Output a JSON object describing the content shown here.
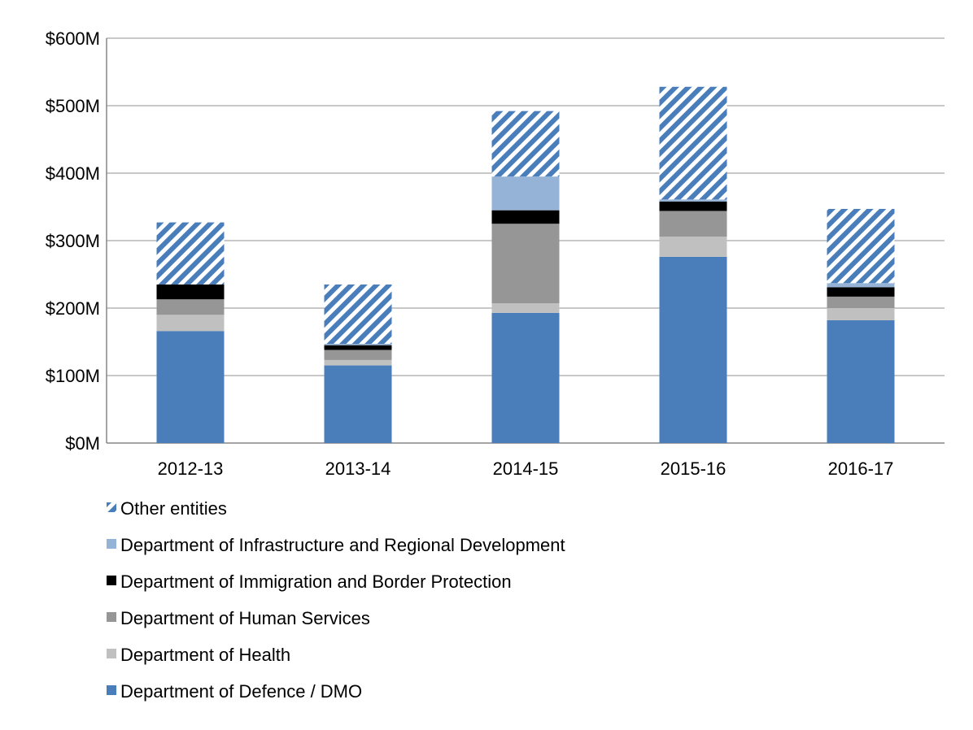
{
  "chart_data": {
    "type": "bar",
    "stacked": true,
    "categories": [
      "2012-13",
      "2013-14",
      "2014-15",
      "2015-16",
      "2016-17"
    ],
    "ylim": [
      0,
      600
    ],
    "yticks": [
      0,
      100,
      200,
      300,
      400,
      500,
      600
    ],
    "ytick_labels": [
      "$0M",
      "$100M",
      "$200M",
      "$300M",
      "$400M",
      "$500M",
      "$600M"
    ],
    "grid": true,
    "legend_position": "bottom",
    "series": [
      {
        "name": "Department of Defence / DMO",
        "color": "#4A7EBB",
        "pattern": "solid",
        "values": [
          166,
          115,
          193,
          276,
          182
        ]
      },
      {
        "name": "Department of Health",
        "color": "#C0C0C0",
        "pattern": "solid",
        "values": [
          24,
          8,
          14,
          30,
          18
        ]
      },
      {
        "name": "Department of Human Services",
        "color": "#969696",
        "pattern": "solid",
        "values": [
          23,
          15,
          118,
          38,
          17
        ]
      },
      {
        "name": "Department of Immigration and Border Protection",
        "color": "#000000",
        "pattern": "solid",
        "values": [
          22,
          7,
          20,
          14,
          14
        ]
      },
      {
        "name": "Department of Infrastructure and Regional Development",
        "color": "#95B3D7",
        "pattern": "solid",
        "values": [
          0,
          2,
          50,
          3,
          6
        ]
      },
      {
        "name": "Other entities",
        "color": "#4A7EBB",
        "pattern": "diagonal-stripes",
        "values": [
          92,
          88,
          97,
          167,
          110
        ]
      }
    ],
    "legend_order": [
      5,
      4,
      3,
      2,
      1,
      0
    ]
  }
}
